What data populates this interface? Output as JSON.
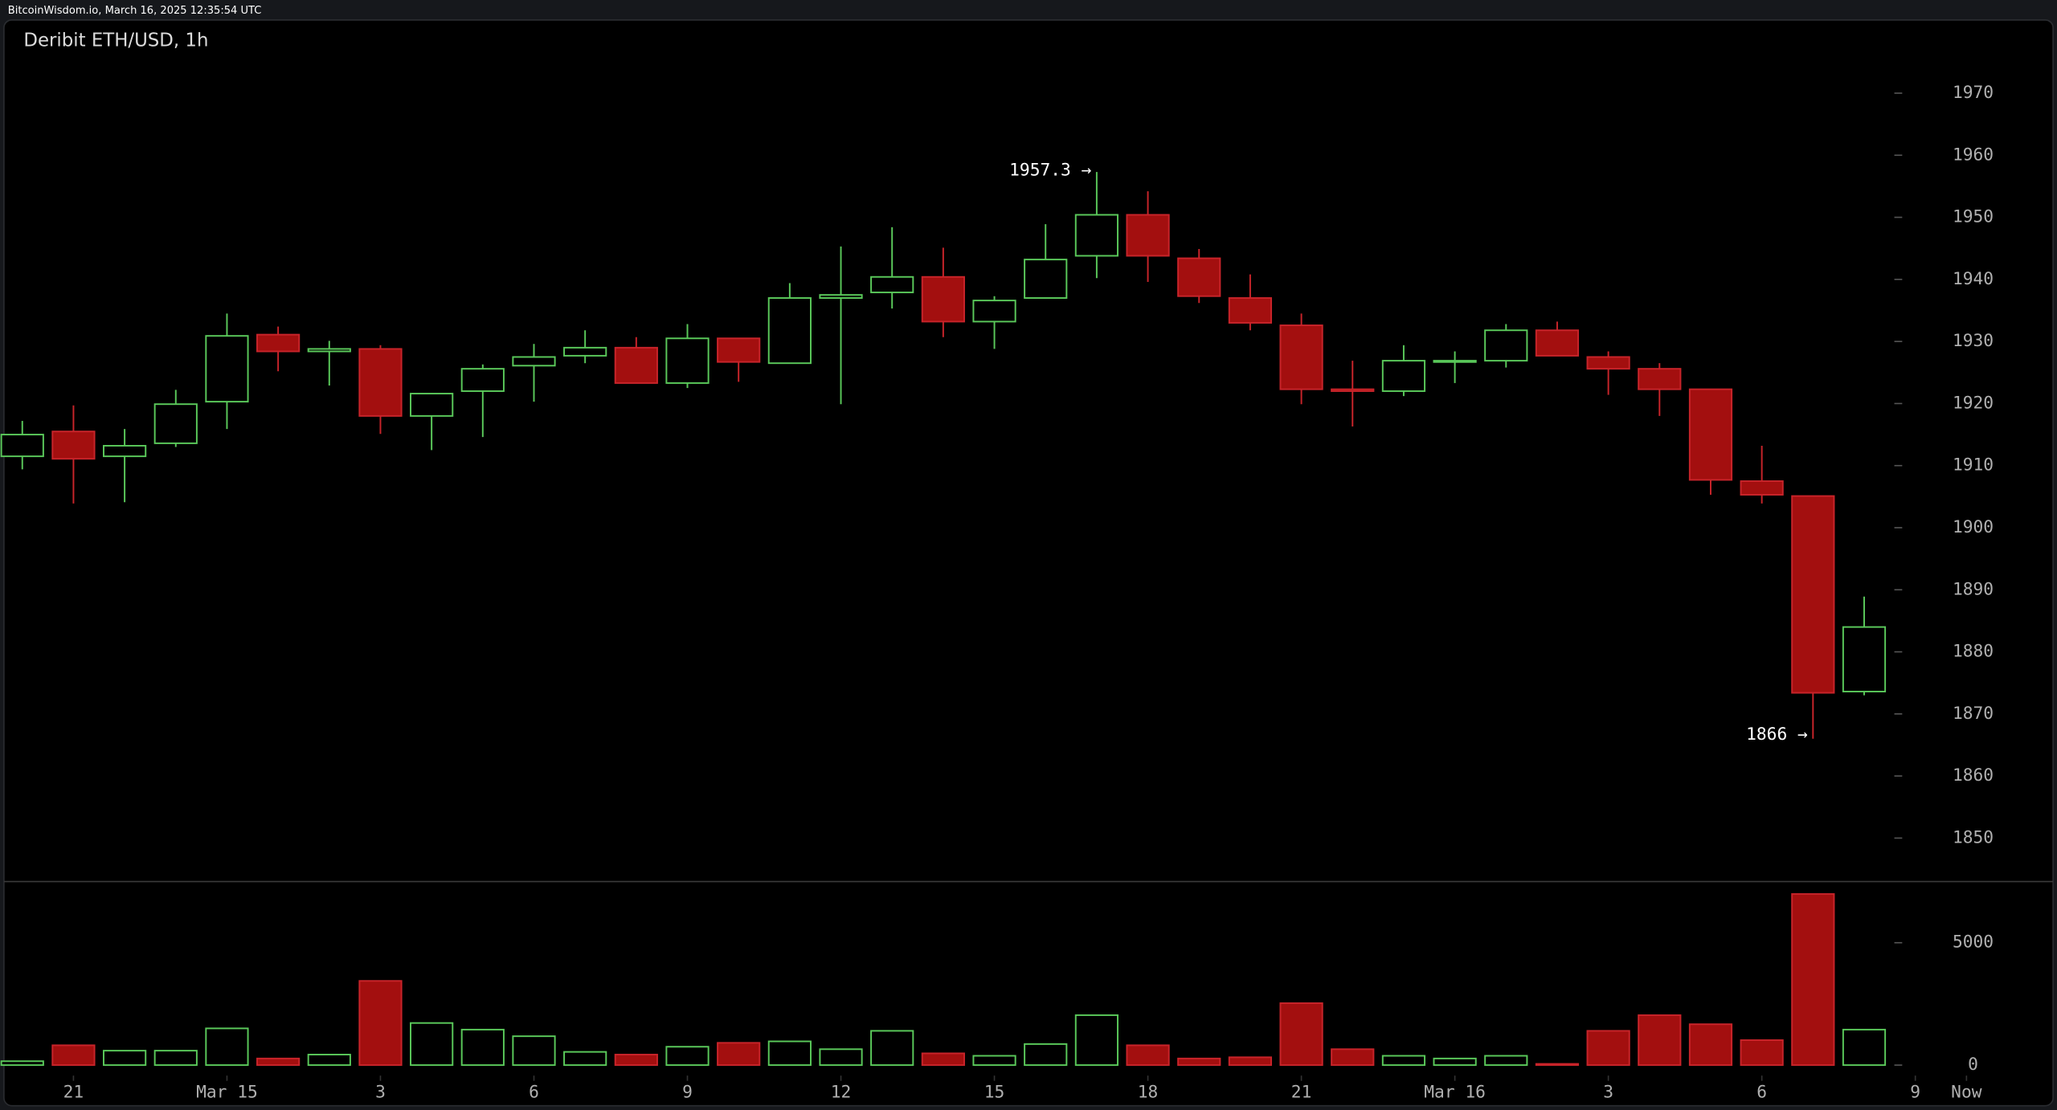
{
  "header": "BitcoinWisdom.io, March 16, 2025 12:35:54 UTC",
  "chart_data": {
    "type": "candlestick",
    "title": "Deribit ETH/USD, 1h",
    "open": [
      1911.5,
      1915.5,
      1911.5,
      1913.6,
      1920.3,
      1931.1,
      1928.4,
      1928.8,
      1918.0,
      1922.0,
      1926.1,
      1927.7,
      1929.0,
      1923.3,
      1930.5,
      1926.5,
      1937.0,
      1937.9,
      1940.4,
      1933.2,
      1937.0,
      1943.8,
      1950.4,
      1943.4,
      1937.0,
      1932.6,
      1922.3,
      1922.0,
      1926.7,
      1926.9,
      1931.8,
      1927.5,
      1925.6,
      1922.3,
      1907.5,
      1905.1,
      1873.6
    ],
    "high": [
      1917.2,
      1919.7,
      1915.9,
      1922.2,
      1934.5,
      1932.4,
      1930.1,
      1929.4,
      1921.6,
      1926.3,
      1929.6,
      1931.8,
      1930.7,
      1932.8,
      1930.5,
      1939.4,
      1945.3,
      1948.4,
      1945.1,
      1937.3,
      1948.9,
      1957.3,
      1954.2,
      1944.9,
      1940.8,
      1934.5,
      1926.9,
      1929.4,
      1928.4,
      1932.8,
      1933.2,
      1928.4,
      1926.5,
      1922.3,
      1913.2,
      1905.1,
      1888.9
    ],
    "low": [
      1909.4,
      1903.9,
      1904.1,
      1913.0,
      1915.9,
      1925.2,
      1922.9,
      1915.1,
      1912.5,
      1914.6,
      1920.3,
      1926.5,
      1923.3,
      1922.5,
      1923.5,
      1926.5,
      1919.9,
      1935.3,
      1930.7,
      1928.8,
      1937.0,
      1940.2,
      1939.6,
      1936.2,
      1931.8,
      1919.9,
      1916.3,
      1921.2,
      1923.3,
      1925.8,
      1927.7,
      1921.4,
      1918.0,
      1905.3,
      1903.9,
      1866,
      1873.0
    ],
    "close": [
      1915.0,
      1911.1,
      1913.2,
      1919.9,
      1930.9,
      1928.4,
      1928.8,
      1918.0,
      1921.6,
      1925.6,
      1927.5,
      1929.0,
      1923.3,
      1930.5,
      1926.7,
      1937.0,
      1937.5,
      1940.4,
      1933.2,
      1936.6,
      1943.2,
      1950.4,
      1943.8,
      1937.3,
      1933.0,
      1922.3,
      1922.0,
      1926.9,
      1926.9,
      1931.8,
      1927.7,
      1925.6,
      1922.3,
      1907.7,
      1905.3,
      1873.4,
      1884.0
    ],
    "volume": [
      160,
      810,
      590,
      590,
      1500,
      270,
      430,
      3440,
      1720,
      1450,
      1180,
      540,
      430,
      750,
      910,
      970,
      650,
      1400,
      480,
      380,
      860,
      2040,
      810,
      270,
      320,
      2530,
      650,
      380,
      270,
      380,
      50,
      1400,
      2040,
      1670,
      1020,
      6990,
      1450
    ],
    "up_color": "#5ac85a",
    "down_color": "#a30f0f",
    "ylim": [
      1843,
      1982
    ],
    "yticks": [
      1850,
      1860,
      1870,
      1880,
      1890,
      1900,
      1910,
      1920,
      1930,
      1940,
      1950,
      1960,
      1970
    ],
    "volume_lim": [
      0,
      7500
    ],
    "volume_ticks": [
      0,
      5000
    ],
    "xticks": [
      {
        "value": 1,
        "label": "21"
      },
      {
        "value": 4,
        "label": "Mar 15"
      },
      {
        "value": 7,
        "label": "3"
      },
      {
        "value": 10,
        "label": "6"
      },
      {
        "value": 13,
        "label": "9"
      },
      {
        "value": 16,
        "label": "12"
      },
      {
        "value": 19,
        "label": "15"
      },
      {
        "value": 22,
        "label": "18"
      },
      {
        "value": 25,
        "label": "21"
      },
      {
        "value": 28,
        "label": "Mar 16"
      },
      {
        "value": 31,
        "label": "3"
      },
      {
        "value": 34,
        "label": "6"
      },
      {
        "value": 37,
        "label": "9"
      },
      {
        "value": 38,
        "label": "Now"
      }
    ],
    "annotations": {
      "high": "1957.3 →",
      "low": "1866 →"
    }
  }
}
